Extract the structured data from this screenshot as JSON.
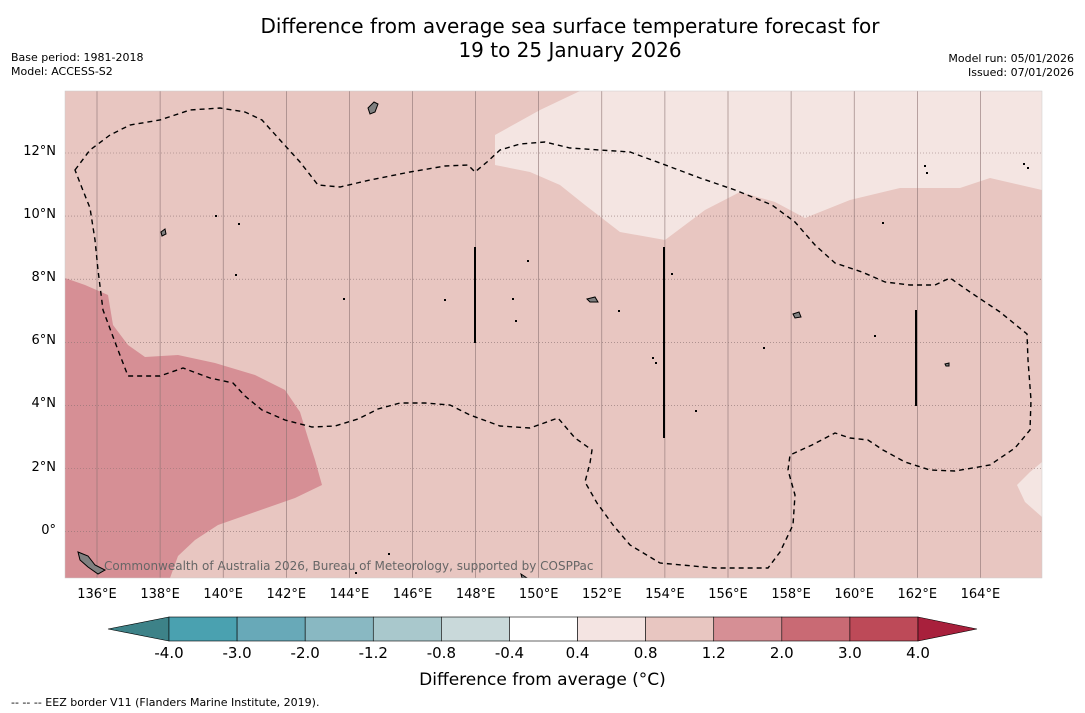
{
  "title": {
    "line1": "Difference from average sea surface temperature forecast for",
    "line2": "19 to 25 January 2026"
  },
  "meta_left": {
    "base_period": "Base period: 1981-2018",
    "model": "Model: ACCESS-S2"
  },
  "meta_right": {
    "model_run": "Model run: 05/01/2026",
    "issued": "Issued: 07/01/2026"
  },
  "map": {
    "lon_labels": [
      "136°E",
      "138°E",
      "140°E",
      "142°E",
      "144°E",
      "146°E",
      "148°E",
      "150°E",
      "152°E",
      "154°E",
      "156°E",
      "158°E",
      "160°E",
      "162°E",
      "164°E"
    ],
    "lat_labels": [
      "12°N",
      "10°N",
      "8°N",
      "6°N",
      "4°N",
      "2°N",
      "0°"
    ],
    "credit": "Commonwealth of Australia 2026, Bureau of Meteorology, supported by COSPPac"
  },
  "colorbar": {
    "tick_labels": [
      "-4.0",
      "-3.0",
      "-2.0",
      "-1.2",
      "-0.8",
      "-0.4",
      "0.4",
      "0.8",
      "1.2",
      "2.0",
      "3.0",
      "4.0"
    ],
    "colors": [
      "#4aa1b0",
      "#68a9b8",
      "#89b8c2",
      "#a9c8cc",
      "#c9d9da",
      "#ffffff",
      "#f4e4e2",
      "#e8c6c1",
      "#d68f95",
      "#c96a74",
      "#bd4a58"
    ],
    "extend_low": "#3d8288",
    "extend_high": "#a8203c",
    "title": "Difference from average (°C)"
  },
  "footnote": "--  --  -- EEZ border V11 (Flanders Marine Institute, 2019)."
}
